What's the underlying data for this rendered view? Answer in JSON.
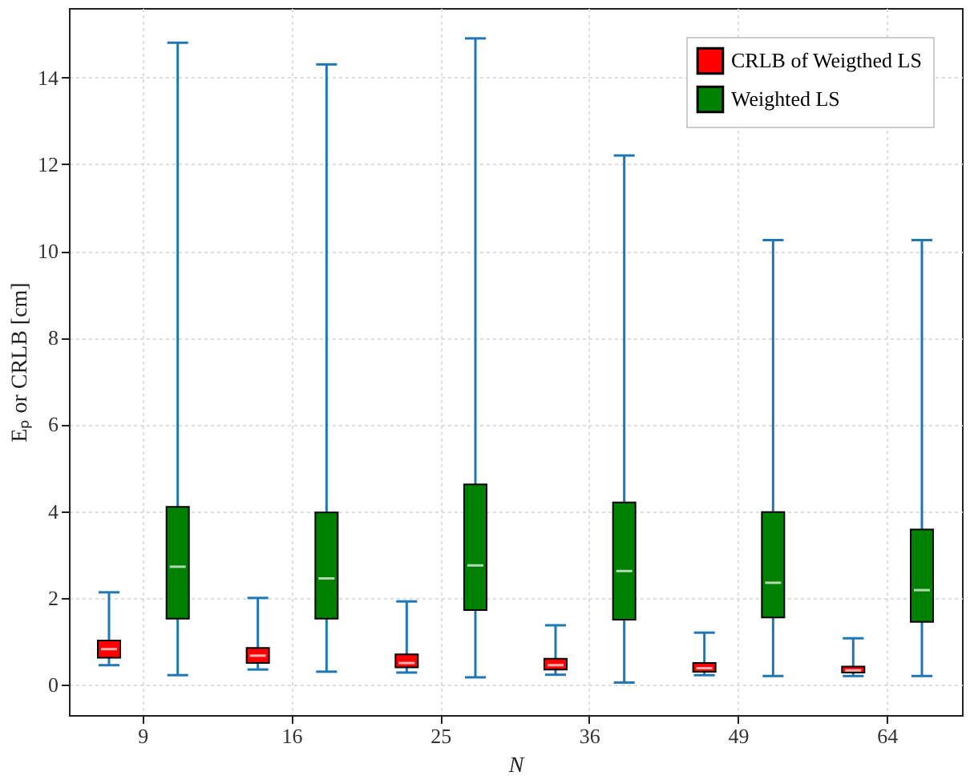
{
  "chart_data": {
    "type": "box",
    "xlabel": "N",
    "ylabel": "Eₚ or CRLB [cm]",
    "categories": [
      "9",
      "16",
      "25",
      "36",
      "49",
      "64"
    ],
    "series": [
      {
        "name": "CRLB of Weigthed LS",
        "color": "#ff0000",
        "boxes": [
          {
            "low": 0.45,
            "q1": 0.62,
            "median": 0.82,
            "q3": 1.02,
            "high": 2.13
          },
          {
            "low": 0.35,
            "q1": 0.5,
            "median": 0.67,
            "q3": 0.85,
            "high": 2.0
          },
          {
            "low": 0.28,
            "q1": 0.4,
            "median": 0.5,
            "q3": 0.7,
            "high": 1.92
          },
          {
            "low": 0.23,
            "q1": 0.35,
            "median": 0.45,
            "q3": 0.6,
            "high": 1.37
          },
          {
            "low": 0.22,
            "q1": 0.3,
            "median": 0.38,
            "q3": 0.5,
            "high": 1.2
          },
          {
            "low": 0.2,
            "q1": 0.28,
            "median": 0.33,
            "q3": 0.42,
            "high": 1.07
          }
        ]
      },
      {
        "name": "Weighted LS",
        "color": "#008000",
        "boxes": [
          {
            "low": 0.22,
            "q1": 1.52,
            "median": 2.72,
            "q3": 4.1,
            "high": 14.8
          },
          {
            "low": 0.3,
            "q1": 1.52,
            "median": 2.45,
            "q3": 3.97,
            "high": 14.3
          },
          {
            "low": 0.17,
            "q1": 1.72,
            "median": 2.75,
            "q3": 4.62,
            "high": 14.9
          },
          {
            "low": 0.05,
            "q1": 1.5,
            "median": 2.62,
            "q3": 4.2,
            "high": 12.2
          },
          {
            "low": 0.2,
            "q1": 1.55,
            "median": 2.35,
            "q3": 3.98,
            "high": 10.25
          },
          {
            "low": 0.2,
            "q1": 1.45,
            "median": 2.18,
            "q3": 3.58,
            "high": 10.25
          }
        ]
      }
    ],
    "ylim": [
      -0.7,
      15.6
    ],
    "yticks": [
      0,
      2,
      4,
      6,
      8,
      10,
      12,
      14
    ],
    "grid": true,
    "legend": "top right"
  }
}
